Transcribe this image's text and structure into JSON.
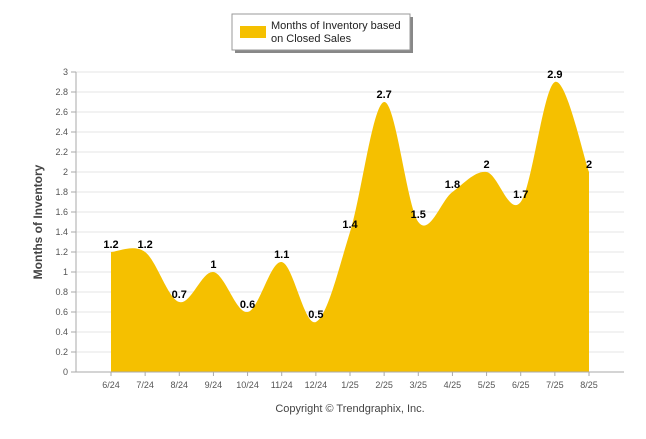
{
  "chart_data": {
    "type": "area",
    "categories": [
      "6/24",
      "7/24",
      "8/24",
      "9/24",
      "10/24",
      "11/24",
      "12/24",
      "1/25",
      "2/25",
      "3/25",
      "4/25",
      "5/25",
      "6/25",
      "7/25",
      "8/25"
    ],
    "series": [
      {
        "name": "Months of Inventory based on Closed Sales",
        "values": [
          1.2,
          1.2,
          0.7,
          1,
          0.6,
          1.1,
          0.5,
          1.4,
          2.7,
          1.5,
          1.8,
          2,
          1.7,
          2.9,
          2
        ],
        "labels": [
          "1.2",
          "1.2",
          "0.7",
          "1",
          "0.6",
          "1.1",
          "0.5",
          "1.4",
          "2.7",
          "1.5",
          "1.8",
          "2",
          "1.7",
          "2.9",
          "2"
        ]
      }
    ],
    "ylabel": "Months of Inventory",
    "xlabel": "",
    "ylim": [
      0,
      3
    ],
    "yticks": [
      "0",
      "0.2",
      "0.4",
      "0.6",
      "0.8",
      "1",
      "1.2",
      "1.4",
      "1.6",
      "1.8",
      "2",
      "2.2",
      "2.4",
      "2.6",
      "2.8",
      "3"
    ],
    "grid": true,
    "legend_position": "top",
    "legend_lines": [
      "Months of Inventory based",
      "on Closed Sales"
    ],
    "credit": "Copyright © Trendgraphix, Inc.",
    "colors": {
      "fill": "#F5C000",
      "grid": "#E6E6E6",
      "axis": "#AAAAAA"
    }
  }
}
